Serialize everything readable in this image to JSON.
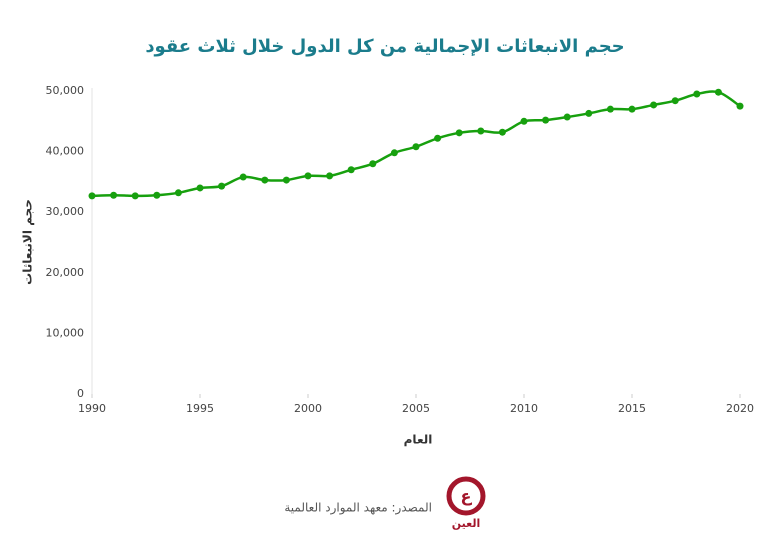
{
  "chart_data": {
    "type": "line",
    "title": "حجم الانبعاثات الإجمالية من كل الدول خلال ثلاث عقود",
    "x_label": "العام",
    "y_label": "حجم الانبعاثات",
    "x": [
      1990,
      1991,
      1992,
      1993,
      1994,
      1995,
      1996,
      1997,
      1998,
      1999,
      2000,
      2001,
      2002,
      2003,
      2004,
      2005,
      2006,
      2007,
      2008,
      2009,
      2010,
      2011,
      2012,
      2013,
      2014,
      2015,
      2016,
      2017,
      2018,
      2019,
      2020
    ],
    "values": [
      32700,
      32800,
      32700,
      32800,
      33200,
      34000,
      34300,
      35800,
      35300,
      35300,
      36000,
      36000,
      37000,
      38000,
      39800,
      40800,
      42200,
      43100,
      43400,
      43200,
      45000,
      45200,
      45700,
      46300,
      47000,
      47000,
      47700,
      48400,
      49500,
      49800,
      47500
    ],
    "color": "#17a00e",
    "xlim": [
      1990,
      2020
    ],
    "xticks": [
      1990,
      1995,
      2000,
      2005,
      2010,
      2015,
      2020
    ],
    "ylim": [
      0,
      50000
    ],
    "yticks": [
      0,
      {
        "value": 10000,
        "label": "10,000"
      },
      {
        "value": 20000,
        "label": "20,000"
      },
      {
        "value": 30000,
        "label": "30,000"
      },
      {
        "value": 40000,
        "label": "40,000"
      },
      {
        "value": 50000,
        "label": "50,000"
      }
    ],
    "grid": false,
    "source": "المصدر: معهد الموارد العالمية",
    "logo": "العين"
  }
}
